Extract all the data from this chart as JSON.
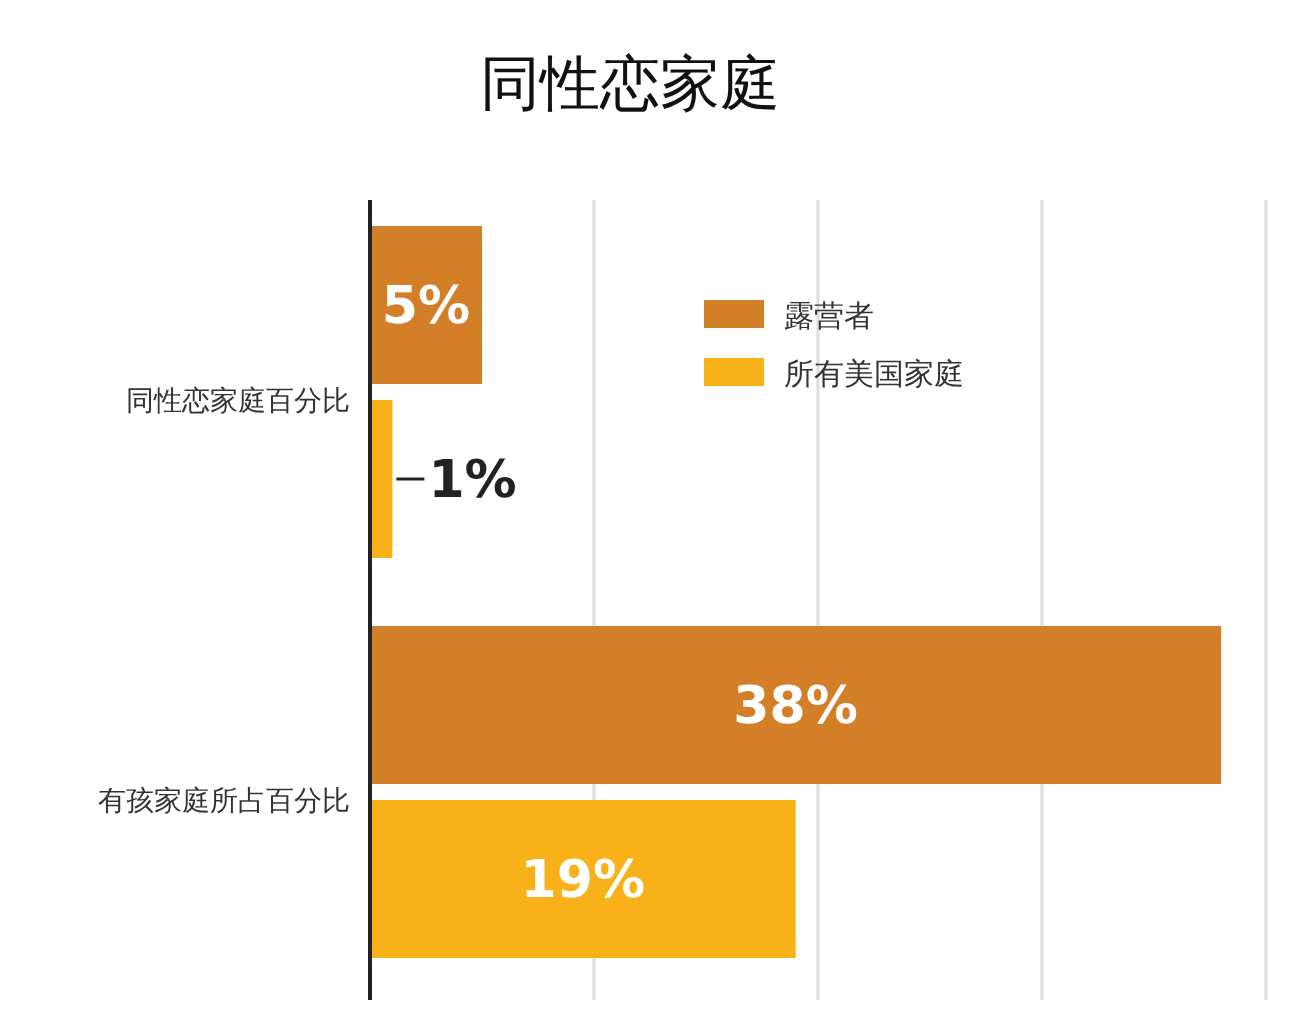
{
  "chart_data": {
    "type": "bar",
    "orientation": "horizontal",
    "title": "同性恋家庭",
    "categories": [
      "同性恋家庭百分比",
      "有孩家庭所占百分比"
    ],
    "series": [
      {
        "name": "露营者",
        "color": "#d27f27",
        "values": [
          5,
          38
        ],
        "value_labels": [
          "5%",
          "38%"
        ]
      },
      {
        "name": "所有美国家庭",
        "color": "#f8b118",
        "values": [
          1,
          19
        ],
        "value_labels": [
          "1%",
          "19%"
        ]
      }
    ],
    "xlim": [
      0,
      40
    ],
    "xticks": [
      {
        "value": 10,
        "label": null
      },
      {
        "value": 20,
        "label": null
      },
      {
        "value": 30,
        "label": null
      },
      {
        "value": 40,
        "label": null
      }
    ],
    "grid": "x",
    "legend": "top",
    "tick_labels": "y"
  }
}
